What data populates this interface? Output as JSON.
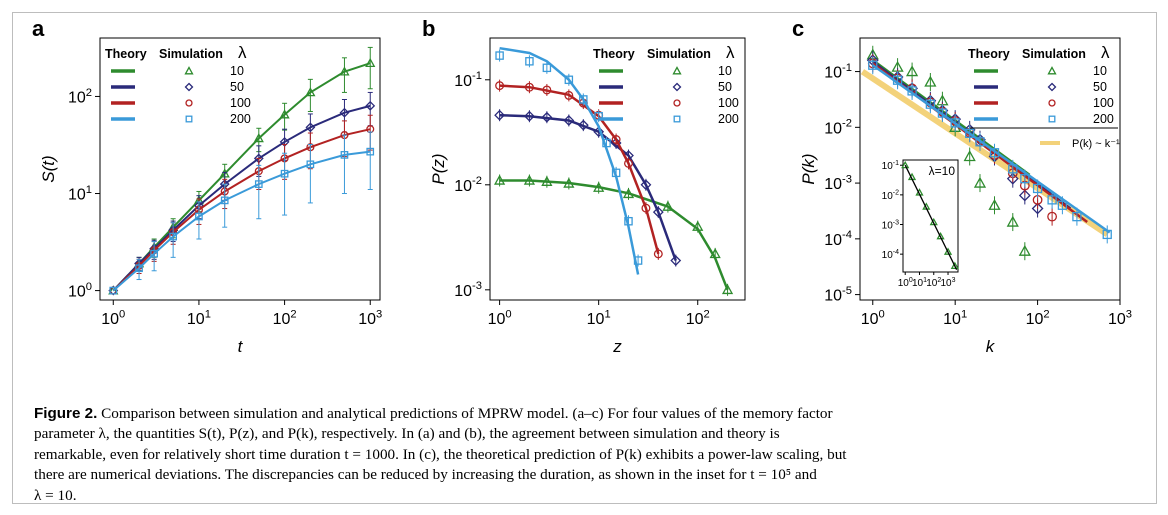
{
  "chart_data": [
    {
      "type": "line",
      "panel_label": "a",
      "xlabel": "t",
      "ylabel": "S(t)",
      "xscale": "log",
      "yscale": "log",
      "xlim": [
        0.7,
        1300
      ],
      "ylim": [
        0.8,
        400
      ],
      "xticks": [
        {
          "v": 1,
          "e": "0"
        },
        {
          "v": 10,
          "e": "1"
        },
        {
          "v": 100,
          "e": "2"
        },
        {
          "v": 1000,
          "e": "3"
        }
      ],
      "yticks": [
        {
          "v": 1,
          "e": "0"
        },
        {
          "v": 10,
          "e": "1"
        },
        {
          "v": 100,
          "e": "2"
        }
      ],
      "legend": {
        "theory": "Theory",
        "simulation": "Simulation",
        "lambda": "λ",
        "placement": "top-left"
      },
      "series": [
        {
          "name": "10",
          "color": "#2e8b2e",
          "marker": "triangle",
          "x": [
            1,
            2,
            3,
            5,
            10,
            20,
            50,
            100,
            200,
            500,
            1000
          ],
          "y": [
            1,
            1.9,
            2.8,
            4.5,
            8.5,
            16,
            37,
            65,
            110,
            180,
            220
          ],
          "err": [
            0,
            0.3,
            0.6,
            1,
            2,
            4,
            10,
            20,
            40,
            70,
            100
          ]
        },
        {
          "name": "50",
          "color": "#2a2a7a",
          "marker": "diamond",
          "x": [
            1,
            2,
            3,
            5,
            10,
            20,
            50,
            100,
            200,
            500,
            1000
          ],
          "y": [
            1,
            1.9,
            2.7,
            4.2,
            7.5,
            12.5,
            23,
            34,
            48,
            68,
            80
          ],
          "err": [
            0,
            0.3,
            0.6,
            1,
            2,
            4,
            8,
            12,
            18,
            25,
            30
          ]
        },
        {
          "name": "100",
          "color": "#b22222",
          "marker": "circle",
          "x": [
            1,
            2,
            3,
            5,
            10,
            20,
            50,
            100,
            200,
            500,
            1000
          ],
          "y": [
            1,
            1.8,
            2.6,
            4,
            6.8,
            10.5,
            17,
            23,
            30,
            40,
            46
          ],
          "err": [
            0,
            0.3,
            0.6,
            1,
            2,
            3.5,
            6,
            9,
            12,
            16,
            18
          ]
        },
        {
          "name": "200",
          "color": "#3a9ad9",
          "marker": "square",
          "x": [
            1,
            2,
            3,
            5,
            10,
            20,
            50,
            100,
            200,
            500,
            1000
          ],
          "y": [
            1,
            1.7,
            2.4,
            3.6,
            5.8,
            8.5,
            12.5,
            16,
            20,
            25,
            27
          ],
          "err": [
            0,
            0.4,
            0.8,
            1.4,
            2.4,
            4,
            7,
            10,
            12,
            15,
            16
          ]
        }
      ]
    },
    {
      "type": "line",
      "panel_label": "b",
      "xlabel": "z",
      "ylabel": "P(z)",
      "xscale": "log",
      "yscale": "log",
      "xlim": [
        0.8,
        300
      ],
      "ylim": [
        0.0008,
        0.25
      ],
      "xticks": [
        {
          "v": 1,
          "e": "0"
        },
        {
          "v": 10,
          "e": "1"
        },
        {
          "v": 100,
          "e": "2"
        }
      ],
      "yticks": [
        {
          "v": 0.001,
          "e": "-3"
        },
        {
          "v": 0.01,
          "e": "-2"
        },
        {
          "v": 0.1,
          "e": "-1"
        }
      ],
      "legend": {
        "theory": "Theory",
        "simulation": "Simulation",
        "lambda": "λ",
        "placement": "top-right"
      },
      "series": [
        {
          "name": "10",
          "color": "#2e8b2e",
          "marker": "triangle",
          "x": [
            1,
            2,
            3,
            5,
            10,
            20,
            50,
            100,
            150,
            200
          ],
          "y": [
            0.011,
            0.011,
            0.0107,
            0.0103,
            0.0094,
            0.0082,
            0.0062,
            0.004,
            0.0022,
            0.001
          ],
          "theory_x": [
            1,
            2,
            5,
            10,
            20,
            50,
            100,
            150,
            200
          ],
          "theory_y": [
            0.011,
            0.011,
            0.0104,
            0.0095,
            0.0083,
            0.0062,
            0.0038,
            0.002,
            0.001
          ]
        },
        {
          "name": "50",
          "color": "#2a2a7a",
          "marker": "diamond",
          "x": [
            1,
            2,
            3,
            5,
            7,
            10,
            15,
            20,
            30,
            40,
            60
          ],
          "y": [
            0.046,
            0.045,
            0.044,
            0.041,
            0.037,
            0.032,
            0.025,
            0.019,
            0.01,
            0.0055,
            0.0019
          ],
          "theory_x": [
            1,
            2,
            5,
            10,
            20,
            30,
            40,
            60
          ],
          "theory_y": [
            0.046,
            0.045,
            0.041,
            0.032,
            0.019,
            0.01,
            0.0055,
            0.0019
          ]
        },
        {
          "name": "100",
          "color": "#b22222",
          "marker": "circle",
          "x": [
            1,
            2,
            3,
            5,
            7,
            10,
            15,
            20,
            30,
            40
          ],
          "y": [
            0.088,
            0.085,
            0.08,
            0.071,
            0.06,
            0.046,
            0.027,
            0.016,
            0.006,
            0.0022
          ],
          "theory_x": [
            1,
            2,
            5,
            10,
            15,
            20,
            30,
            40
          ],
          "theory_y": [
            0.088,
            0.085,
            0.072,
            0.045,
            0.027,
            0.016,
            0.006,
            0.0022
          ]
        },
        {
          "name": "200",
          "color": "#3a9ad9",
          "marker": "square",
          "x": [
            1,
            2,
            3,
            5,
            7,
            10,
            12,
            15,
            20,
            25
          ],
          "y": [
            0.17,
            0.15,
            0.13,
            0.1,
            0.065,
            0.045,
            0.025,
            0.013,
            0.0045,
            0.0019
          ],
          "theory_x": [
            1,
            2,
            3,
            5,
            7,
            10,
            15,
            20,
            25
          ],
          "theory_y": [
            0.2,
            0.18,
            0.15,
            0.1,
            0.065,
            0.036,
            0.012,
            0.004,
            0.0014
          ]
        }
      ]
    },
    {
      "type": "line",
      "panel_label": "c",
      "xlabel": "k",
      "ylabel": "P(k)",
      "xscale": "log",
      "yscale": "log",
      "xlim": [
        0.7,
        1000
      ],
      "ylim": [
        8e-06,
        0.4
      ],
      "xticks": [
        {
          "v": 1,
          "e": "0"
        },
        {
          "v": 10,
          "e": "1"
        },
        {
          "v": 100,
          "e": "2"
        },
        {
          "v": 1000,
          "e": "3"
        }
      ],
      "yticks": [
        {
          "v": 1e-05,
          "e": "-5"
        },
        {
          "v": 0.0001,
          "e": "-4"
        },
        {
          "v": 0.001,
          "e": "-3"
        },
        {
          "v": 0.01,
          "e": "-2"
        },
        {
          "v": 0.1,
          "e": "-1"
        }
      ],
      "legend": {
        "theory": "Theory",
        "simulation": "Simulation",
        "lambda": "λ",
        "placement": "top-right",
        "reference": "P(k) ~ k⁻¹"
      },
      "reference_line": {
        "label": "P(k) ~ k⁻¹",
        "color": "#f3d27a",
        "x": [
          0.75,
          700
        ],
        "y": [
          0.1,
          0.00012
        ]
      },
      "series": [
        {
          "name": "10",
          "color": "#2e8b2e",
          "marker": "triangle",
          "x": [
            1,
            2,
            3,
            5,
            7,
            10,
            15,
            20,
            30,
            50,
            70
          ],
          "y": [
            0.2,
            0.12,
            0.1,
            0.065,
            0.03,
            0.01,
            0.003,
            0.001,
            0.0004,
            0.0002,
            6e-05
          ],
          "theory_x": [
            1,
            80
          ],
          "theory_y": [
            0.16,
            0.0014
          ]
        },
        {
          "name": "50",
          "color": "#2a2a7a",
          "marker": "diamond",
          "x": [
            1,
            2,
            3,
            5,
            7,
            10,
            15,
            20,
            30,
            50,
            70,
            100
          ],
          "y": [
            0.16,
            0.08,
            0.05,
            0.03,
            0.02,
            0.014,
            0.009,
            0.006,
            0.003,
            0.0012,
            0.0006,
            0.00035
          ],
          "theory_x": [
            1,
            250
          ],
          "theory_y": [
            0.15,
            0.00035
          ]
        },
        {
          "name": "100",
          "color": "#b22222",
          "marker": "circle",
          "x": [
            1,
            2,
            3,
            5,
            7,
            10,
            15,
            20,
            30,
            50,
            70,
            100,
            150
          ],
          "y": [
            0.14,
            0.075,
            0.05,
            0.028,
            0.019,
            0.013,
            0.008,
            0.0055,
            0.0032,
            0.0015,
            0.0009,
            0.0005,
            0.00025
          ],
          "theory_x": [
            1,
            400
          ],
          "theory_y": [
            0.14,
            0.0002
          ]
        },
        {
          "name": "200",
          "color": "#3a9ad9",
          "marker": "square",
          "x": [
            1,
            2,
            3,
            5,
            7,
            10,
            15,
            20,
            30,
            50,
            70,
            100,
            150,
            200,
            300,
            700
          ],
          "y": [
            0.13,
            0.07,
            0.045,
            0.026,
            0.018,
            0.012,
            0.0078,
            0.0055,
            0.0035,
            0.0018,
            0.0012,
            0.0008,
            0.0005,
            0.0004,
            0.00025,
            0.00012
          ],
          "theory_x": [
            1,
            750
          ],
          "theory_y": [
            0.13,
            0.00013
          ]
        }
      ],
      "inset": {
        "label": "λ=10",
        "xlim": [
          0.7,
          5000
        ],
        "ylim": [
          2.5e-05,
          0.15
        ],
        "xticks": [
          {
            "v": 1,
            "e": "0"
          },
          {
            "v": 10,
            "e": "1"
          },
          {
            "v": 100,
            "e": "2"
          },
          {
            "v": 1000,
            "e": "3"
          }
        ],
        "yticks": [
          {
            "v": 0.0001,
            "e": "-4"
          },
          {
            "v": 0.001,
            "e": "-3"
          },
          {
            "v": 0.01,
            "e": "-2"
          },
          {
            "v": 0.1,
            "e": "-1"
          }
        ],
        "theory_x": [
          1,
          4000
        ],
        "theory_y": [
          0.1,
          3e-05
        ],
        "sim_x": [
          1,
          3,
          10,
          30,
          100,
          300,
          1000,
          3000
        ],
        "sim_y": [
          0.1,
          0.04,
          0.012,
          0.004,
          0.0012,
          0.0004,
          0.00012,
          4e-05
        ]
      }
    }
  ],
  "caption": {
    "label": "Figure 2.",
    "lines": [
      "Comparison between simulation and analytical predictions of MPRW model. (a–c) For four values of the memory factor",
      "parameter λ, the quantities S(t), P(z), and P(k), respectively. In (a) and (b), the agreement between simulation and theory is",
      "remarkable, even for relatively short time duration t = 1000. In (c), the theoretical prediction of P(k) exhibits a power-law scaling, but",
      "there are numerical deviations. The discrepancies can be reduced by increasing the duration, as shown in the inset for t = 10⁵ and",
      "λ = 10."
    ]
  }
}
